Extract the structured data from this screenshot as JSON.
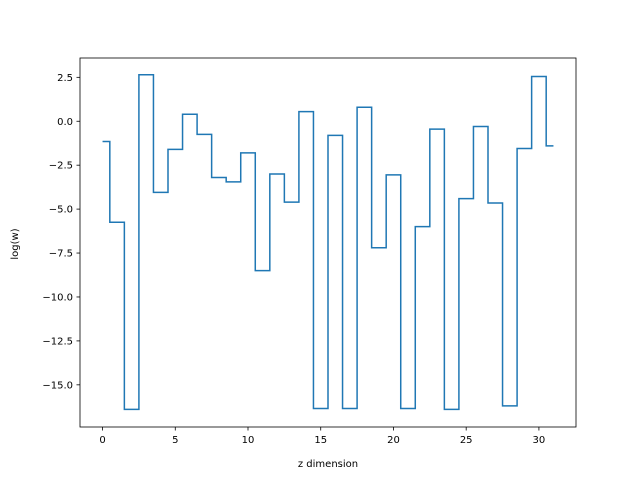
{
  "chart_data": {
    "type": "line",
    "drawstyle": "steps-mid",
    "xlabel": "z dimension",
    "ylabel": "log(w)",
    "xlim": [
      -1.55,
      32.55
    ],
    "ylim": [
      -17.4,
      3.6
    ],
    "xticks": [
      0,
      5,
      10,
      15,
      20,
      25,
      30
    ],
    "xtick_labels": [
      "0",
      "5",
      "10",
      "15",
      "20",
      "25",
      "30"
    ],
    "yticks": [
      2.5,
      0.0,
      -2.5,
      -5.0,
      -7.5,
      -10.0,
      -12.5,
      -15.0
    ],
    "ytick_labels": [
      "2.5",
      "0.0",
      "−2.5",
      "−5.0",
      "−7.5",
      "−10.0",
      "−12.5",
      "−15.0"
    ],
    "grid": false,
    "series": [
      {
        "color": "#1f77b4",
        "x": [
          0,
          1,
          2,
          3,
          4,
          5,
          6,
          7,
          8,
          9,
          10,
          11,
          12,
          13,
          14,
          15,
          16,
          17,
          18,
          19,
          20,
          21,
          22,
          23,
          24,
          25,
          26,
          27,
          28,
          29,
          30,
          31
        ],
        "values": [
          -1.15,
          -5.75,
          -16.4,
          2.65,
          -4.05,
          -1.6,
          0.4,
          -0.75,
          -3.2,
          -3.45,
          -1.8,
          -8.5,
          -3.0,
          -4.6,
          0.55,
          -16.35,
          -0.8,
          -16.35,
          0.8,
          -7.2,
          -3.05,
          -16.35,
          -6.0,
          -0.45,
          -16.4,
          -4.4,
          -0.3,
          -4.65,
          -16.2,
          -1.55,
          2.55,
          -1.4
        ]
      }
    ]
  }
}
